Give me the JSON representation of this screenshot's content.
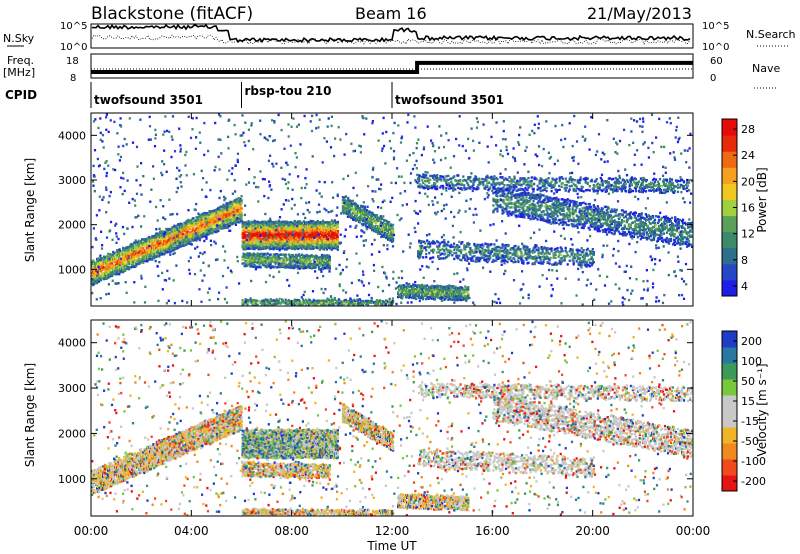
{
  "header": {
    "station": "Blackstone (fitACF)",
    "beam": "Beam 16",
    "date": "21/May/2013"
  },
  "chart_data": [
    {
      "type": "line",
      "panel": "sky-noise",
      "left_label": "N.Sky",
      "right_label": "N.Search",
      "y_ticks": [
        "10^5",
        "10^0"
      ],
      "right_ticks": [
        "10^5",
        "10^0"
      ],
      "y_scale": "log",
      "ylim": [
        1,
        100000
      ]
    },
    {
      "type": "line",
      "panel": "frequency",
      "left_label_lines": [
        "Freq.",
        "[MHz]"
      ],
      "right_label": "Nave",
      "y_ticks": [
        18,
        8
      ],
      "right_ticks": [
        60,
        0
      ],
      "freq_series_mhz": {
        "x_hours": [
          0,
          13,
          13,
          24
        ],
        "values": [
          10.5,
          10.5,
          14.3,
          14.3
        ]
      }
    },
    {
      "type": "table",
      "panel": "cpid",
      "label": "CPID",
      "segments": [
        {
          "start_hour": 0,
          "end_hour": 6,
          "text": "twofsound 3501"
        },
        {
          "start_hour": 6,
          "end_hour": 12,
          "text": "rbsp-tou 210"
        },
        {
          "start_hour": 12,
          "end_hour": 24,
          "text": "twofsound 3501"
        }
      ]
    },
    {
      "type": "heatmap",
      "panel": "power",
      "ylabel": "Slant Range [km]",
      "y_ticks": [
        1000,
        2000,
        3000,
        4000
      ],
      "ylim": [
        180,
        4500
      ],
      "xlim": [
        0,
        24
      ],
      "colorbar": {
        "label": "Power [dB]",
        "ticks": [
          "28",
          "24",
          "20",
          "16",
          "12",
          "8",
          "4"
        ],
        "range": [
          0,
          30
        ],
        "colors": [
          "#1e1ee6",
          "#2646c8",
          "#2c6e8c",
          "#3c8a6a",
          "#5aa05a",
          "#a0d040",
          "#f0c820",
          "#f5a020",
          "#f06a14",
          "#e62a0a",
          "#e60a0a"
        ]
      }
    },
    {
      "type": "heatmap",
      "panel": "velocity",
      "ylabel": "Slant Range [km]",
      "y_ticks": [
        1000,
        2000,
        3000,
        4000
      ],
      "ylim": [
        180,
        4500
      ],
      "xlim": [
        0,
        24
      ],
      "xlabel": "Time UT",
      "x_ticks": [
        "00:00",
        "04:00",
        "08:00",
        "12:00",
        "16:00",
        "20:00",
        "00:00"
      ],
      "colorbar": {
        "label": "Velocity [m s⁻¹]",
        "ticks": [
          "200",
          "100",
          "50",
          "15",
          "-15",
          "-50",
          "-100",
          "-200"
        ],
        "range": [
          -250,
          250
        ],
        "colors": [
          "#e61414",
          "#f04a1e",
          "#f08a1e",
          "#f0b428",
          "#c8c8c8",
          "#c8c8c8",
          "#78c83c",
          "#3c9a5a",
          "#2878a0",
          "#1e3cc8"
        ]
      }
    }
  ]
}
